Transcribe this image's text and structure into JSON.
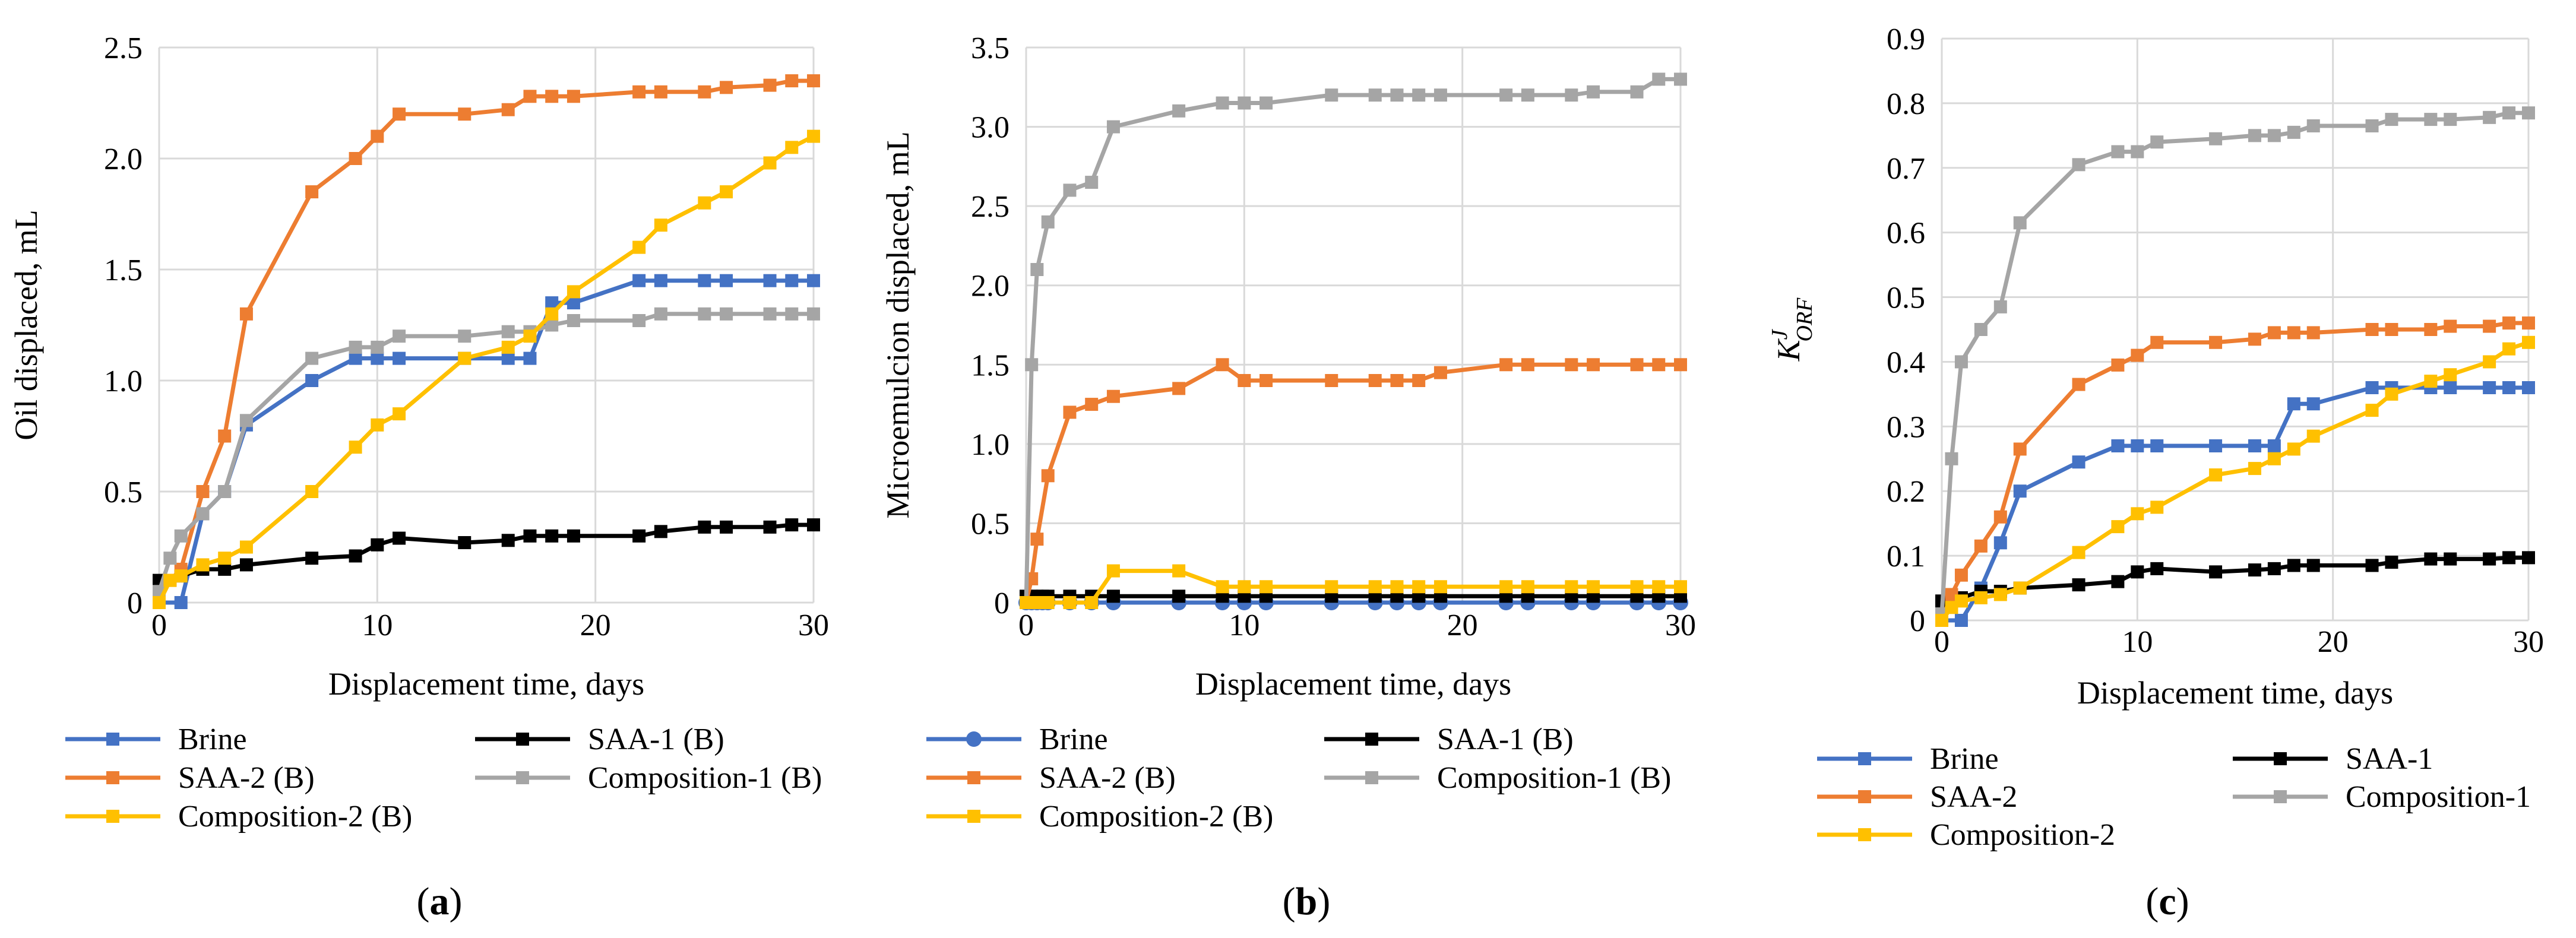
{
  "colors": {
    "Brine": "#4472C4",
    "SAA-1": "#000000",
    "SAA-2": "#ED7D31",
    "Composition-1": "#A5A5A5",
    "Composition-2": "#FFC000"
  },
  "panels": [
    {
      "label": "(a)",
      "label_open": "(",
      "label_letter": "a",
      "label_close": ")"
    },
    {
      "label": "(b)",
      "label_open": "(",
      "label_letter": "b",
      "label_close": ")"
    },
    {
      "label": "(c)",
      "label_open": "(",
      "label_letter": "c",
      "label_close": ")"
    }
  ],
  "chart_data": [
    {
      "type": "line",
      "xlabel": "Displacement time, days",
      "ylabel": "Oil displaced, mL",
      "xlim": [
        0,
        30
      ],
      "ylim": [
        0,
        2.5
      ],
      "xticks": [
        0,
        10,
        20,
        30
      ],
      "xtick_labels": [
        "0",
        "10",
        "20",
        "30"
      ],
      "yticks": [
        0,
        0.5,
        1.0,
        1.5,
        2.0,
        2.5
      ],
      "ytick_labels": [
        "0",
        "0.5",
        "1.0",
        "1.5",
        "2.0",
        "2.5"
      ],
      "grid": true,
      "series": [
        {
          "name": "Brine",
          "key": "Brine",
          "marker": "square",
          "x": [
            0,
            1,
            2,
            3,
            4,
            7,
            9,
            10,
            11,
            14,
            16,
            17,
            18,
            19,
            22,
            23,
            25,
            26,
            28,
            29,
            30
          ],
          "y": [
            0,
            0,
            0.4,
            0.5,
            0.8,
            1.0,
            1.1,
            1.1,
            1.1,
            1.1,
            1.1,
            1.1,
            1.35,
            1.35,
            1.45,
            1.45,
            1.45,
            1.45,
            1.45,
            1.45,
            1.45
          ]
        },
        {
          "name": "SAA-1 (B)",
          "key": "SAA-1",
          "marker": "square",
          "x": [
            0,
            1,
            2,
            3,
            4,
            7,
            9,
            10,
            11,
            14,
            16,
            17,
            18,
            19,
            22,
            23,
            25,
            26,
            28,
            29,
            30
          ],
          "y": [
            0.1,
            0.12,
            0.15,
            0.15,
            0.17,
            0.2,
            0.21,
            0.26,
            0.29,
            0.27,
            0.28,
            0.3,
            0.3,
            0.3,
            0.3,
            0.32,
            0.34,
            0.34,
            0.34,
            0.35,
            0.35
          ]
        },
        {
          "name": "SAA-2 (B)",
          "key": "SAA-2",
          "marker": "square",
          "x": [
            0,
            0.5,
            1,
            2,
            3,
            4,
            7,
            9,
            10,
            11,
            14,
            16,
            17,
            18,
            19,
            22,
            23,
            25,
            26,
            28,
            29,
            30
          ],
          "y": [
            0,
            0.1,
            0.15,
            0.5,
            0.75,
            1.3,
            1.85,
            2.0,
            2.1,
            2.2,
            2.2,
            2.22,
            2.28,
            2.28,
            2.28,
            2.3,
            2.3,
            2.3,
            2.32,
            2.33,
            2.35,
            2.35
          ]
        },
        {
          "name": "Composition-1 (B)",
          "key": "Composition-1",
          "marker": "square",
          "x": [
            0,
            0.5,
            1,
            2,
            3,
            4,
            7,
            9,
            10,
            11,
            14,
            16,
            17,
            18,
            19,
            22,
            23,
            25,
            26,
            28,
            29,
            30
          ],
          "y": [
            0.05,
            0.2,
            0.3,
            0.4,
            0.5,
            0.82,
            1.1,
            1.15,
            1.15,
            1.2,
            1.2,
            1.22,
            1.22,
            1.25,
            1.27,
            1.27,
            1.3,
            1.3,
            1.3,
            1.3,
            1.3,
            1.3
          ]
        },
        {
          "name": "Composition-2 (B)",
          "key": "Composition-2",
          "marker": "square",
          "x": [
            0,
            0.5,
            1,
            2,
            3,
            4,
            7,
            9,
            10,
            11,
            14,
            16,
            17,
            18,
            19,
            22,
            23,
            25,
            26,
            28,
            29,
            30
          ],
          "y": [
            0,
            0.1,
            0.12,
            0.17,
            0.2,
            0.25,
            0.5,
            0.7,
            0.8,
            0.85,
            1.1,
            1.15,
            1.2,
            1.3,
            1.4,
            1.6,
            1.7,
            1.8,
            1.85,
            1.98,
            2.05,
            2.1
          ]
        }
      ],
      "legend": {
        "position": "bottom",
        "order": [
          "Brine",
          "SAA-1 (B)",
          "SAA-2 (B)",
          "Composition-1 (B)",
          "Composition-2 (B)"
        ]
      }
    },
    {
      "type": "line",
      "xlabel": "Displacement time, days",
      "ylabel": "Microemulcion displaced, mL",
      "xlim": [
        0,
        30
      ],
      "ylim": [
        0,
        3.5
      ],
      "xticks": [
        0,
        10,
        20,
        30
      ],
      "xtick_labels": [
        "0",
        "10",
        "20",
        "30"
      ],
      "yticks": [
        0,
        0.5,
        1.0,
        1.5,
        2.0,
        2.5,
        3.0,
        3.5
      ],
      "ytick_labels": [
        "0",
        "0.5",
        "1.0",
        "1.5",
        "2.0",
        "2.5",
        "3.0",
        "3.5"
      ],
      "grid": true,
      "series": [
        {
          "name": "Brine",
          "key": "Brine",
          "marker": "circle",
          "x": [
            0,
            0.25,
            0.5,
            0.75,
            1,
            2,
            3,
            4,
            7,
            9,
            10,
            11,
            14,
            16,
            17,
            18,
            19,
            22,
            23,
            25,
            26,
            28,
            29,
            30
          ],
          "y": [
            0,
            0,
            0,
            0,
            0,
            0,
            0,
            0,
            0,
            0,
            0,
            0,
            0,
            0,
            0,
            0,
            0,
            0,
            0,
            0,
            0,
            0,
            0,
            0
          ]
        },
        {
          "name": "SAA-1 (B)",
          "key": "SAA-1",
          "marker": "square",
          "x": [
            0,
            0.25,
            0.5,
            0.75,
            1,
            2,
            3,
            4,
            7,
            9,
            10,
            11,
            14,
            16,
            17,
            18,
            19,
            22,
            23,
            25,
            26,
            28,
            29,
            30
          ],
          "y": [
            0.04,
            0.04,
            0.04,
            0.04,
            0.04,
            0.04,
            0.04,
            0.04,
            0.04,
            0.04,
            0.04,
            0.04,
            0.04,
            0.04,
            0.04,
            0.04,
            0.04,
            0.04,
            0.04,
            0.04,
            0.04,
            0.04,
            0.04,
            0.04
          ]
        },
        {
          "name": "SAA-2 (B)",
          "key": "SAA-2",
          "marker": "square",
          "x": [
            0,
            0.25,
            0.5,
            1,
            2,
            3,
            4,
            7,
            9,
            10,
            11,
            14,
            16,
            17,
            18,
            19,
            22,
            23,
            25,
            26,
            28,
            29,
            30
          ],
          "y": [
            0,
            0.15,
            0.4,
            0.8,
            1.2,
            1.25,
            1.3,
            1.35,
            1.5,
            1.4,
            1.4,
            1.4,
            1.4,
            1.4,
            1.4,
            1.45,
            1.5,
            1.5,
            1.5,
            1.5,
            1.5,
            1.5,
            1.5
          ]
        },
        {
          "name": "Composition-1 (B)",
          "key": "Composition-1",
          "marker": "square",
          "x": [
            0,
            0.25,
            0.5,
            1,
            2,
            3,
            4,
            7,
            9,
            10,
            11,
            14,
            16,
            17,
            18,
            19,
            22,
            23,
            25,
            26,
            28,
            29,
            30
          ],
          "y": [
            0,
            1.5,
            2.1,
            2.4,
            2.6,
            2.65,
            3.0,
            3.1,
            3.15,
            3.15,
            3.15,
            3.2,
            3.2,
            3.2,
            3.2,
            3.2,
            3.2,
            3.2,
            3.2,
            3.22,
            3.22,
            3.3,
            3.3
          ]
        },
        {
          "name": "Composition-2 (B)",
          "key": "Composition-2",
          "marker": "square",
          "x": [
            0,
            0.5,
            1,
            2,
            3,
            4,
            7,
            9,
            10,
            11,
            14,
            16,
            17,
            18,
            19,
            22,
            23,
            25,
            26,
            28,
            29,
            30
          ],
          "y": [
            0,
            0,
            0,
            0,
            0,
            0.2,
            0.2,
            0.1,
            0.1,
            0.1,
            0.1,
            0.1,
            0.1,
            0.1,
            0.1,
            0.1,
            0.1,
            0.1,
            0.1,
            0.1,
            0.1,
            0.1
          ]
        }
      ],
      "legend": {
        "position": "bottom",
        "order": [
          "Brine",
          "SAA-1 (B)",
          "SAA-2 (B)",
          "Composition-1 (B)",
          "Composition-2 (B)"
        ]
      }
    },
    {
      "type": "line",
      "xlabel": "Displacement time, days",
      "ylabel": "KJORF",
      "ylabel_main": "K",
      "ylabel_sup": "J",
      "ylabel_sub": "ORF",
      "xlim": [
        0,
        30
      ],
      "ylim": [
        0,
        0.9
      ],
      "xticks": [
        0,
        10,
        20,
        30
      ],
      "xtick_labels": [
        "0",
        "10",
        "20",
        "30"
      ],
      "yticks": [
        0,
        0.1,
        0.2,
        0.3,
        0.4,
        0.5,
        0.6,
        0.7,
        0.8,
        0.9
      ],
      "ytick_labels": [
        "0",
        "0.1",
        "0.2",
        "0.3",
        "0.4",
        "0.5",
        "0.6",
        "0.7",
        "0.8",
        "0.9"
      ],
      "grid": true,
      "series": [
        {
          "name": "Brine",
          "key": "Brine",
          "marker": "square",
          "x": [
            0,
            1,
            2,
            3,
            4,
            7,
            9,
            10,
            11,
            14,
            16,
            17,
            18,
            19,
            22,
            23,
            25,
            26,
            28,
            29,
            30
          ],
          "y": [
            0,
            0,
            0.05,
            0.12,
            0.2,
            0.245,
            0.27,
            0.27,
            0.27,
            0.27,
            0.27,
            0.27,
            0.335,
            0.335,
            0.36,
            0.36,
            0.36,
            0.36,
            0.36,
            0.36,
            0.36
          ]
        },
        {
          "name": "SAA-1",
          "key": "SAA-1",
          "marker": "square",
          "x": [
            0,
            1,
            2,
            3,
            4,
            7,
            9,
            10,
            11,
            14,
            16,
            17,
            18,
            19,
            22,
            23,
            25,
            26,
            28,
            29,
            30
          ],
          "y": [
            0.03,
            0.035,
            0.045,
            0.045,
            0.05,
            0.055,
            0.06,
            0.075,
            0.08,
            0.075,
            0.078,
            0.08,
            0.085,
            0.085,
            0.085,
            0.09,
            0.095,
            0.095,
            0.095,
            0.097,
            0.097
          ]
        },
        {
          "name": "SAA-2",
          "key": "SAA-2",
          "marker": "square",
          "x": [
            0,
            0.5,
            1,
            2,
            3,
            4,
            7,
            9,
            10,
            11,
            14,
            16,
            17,
            18,
            19,
            22,
            23,
            25,
            26,
            28,
            29,
            30
          ],
          "y": [
            0,
            0.04,
            0.07,
            0.115,
            0.16,
            0.265,
            0.365,
            0.395,
            0.41,
            0.43,
            0.43,
            0.435,
            0.445,
            0.445,
            0.445,
            0.45,
            0.45,
            0.45,
            0.455,
            0.455,
            0.46,
            0.46
          ]
        },
        {
          "name": "Composition-1",
          "key": "Composition-1",
          "marker": "square",
          "x": [
            0,
            0.5,
            1,
            2,
            3,
            4,
            7,
            9,
            10,
            11,
            14,
            16,
            17,
            18,
            19,
            22,
            23,
            25,
            26,
            28,
            29,
            30
          ],
          "y": [
            0.01,
            0.25,
            0.4,
            0.45,
            0.485,
            0.615,
            0.705,
            0.725,
            0.725,
            0.74,
            0.745,
            0.75,
            0.75,
            0.755,
            0.765,
            0.765,
            0.775,
            0.775,
            0.775,
            0.778,
            0.785,
            0.785
          ]
        },
        {
          "name": "Composition-2",
          "key": "Composition-2",
          "marker": "square",
          "x": [
            0,
            0.5,
            1,
            2,
            3,
            4,
            7,
            9,
            10,
            11,
            14,
            16,
            17,
            18,
            19,
            22,
            23,
            25,
            26,
            28,
            29,
            30
          ],
          "y": [
            0,
            0.02,
            0.03,
            0.035,
            0.04,
            0.05,
            0.105,
            0.145,
            0.165,
            0.175,
            0.225,
            0.235,
            0.25,
            0.265,
            0.285,
            0.325,
            0.35,
            0.37,
            0.38,
            0.4,
            0.42,
            0.43
          ]
        }
      ],
      "legend": {
        "position": "bottom",
        "order": [
          "Brine",
          "SAA-1",
          "SAA-2",
          "Composition-1",
          "Composition-2"
        ]
      }
    }
  ]
}
